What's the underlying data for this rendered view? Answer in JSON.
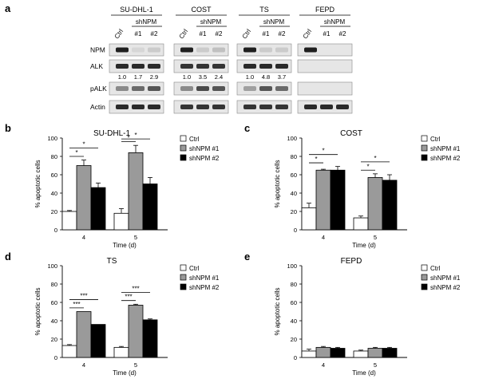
{
  "panel_a": {
    "letter": "a",
    "groups": [
      {
        "title": "SU-DHL-1",
        "ctrl": "Ctrl",
        "sh": "shNPM",
        "sh1": "#1",
        "sh2": "#2",
        "ratios": [
          "1.0",
          "1.7",
          "2.9"
        ]
      },
      {
        "title": "COST",
        "ctrl": "Ctrl",
        "sh": "shNPM",
        "sh1": "#1",
        "sh2": "#2",
        "ratios": [
          "1.0",
          "3.5",
          "2.4"
        ]
      },
      {
        "title": "TS",
        "ctrl": "Ctrl",
        "sh": "shNPM",
        "sh1": "#1",
        "sh2": "#2",
        "ratios": [
          "1.0",
          "4.8",
          "3.7"
        ]
      },
      {
        "title": "FEPD",
        "ctrl": "Ctrl",
        "sh": "shNPM",
        "sh1": "#1",
        "sh2": "#2",
        "ratios": []
      }
    ],
    "row_labels": [
      "NPM",
      "ALK",
      "pALK",
      "Actin"
    ]
  },
  "chart_data": [
    {
      "panel": "b",
      "type": "bar",
      "title": "SU-DHL-1",
      "xlabel": "Time (d)",
      "ylabel": "% apoptotic cells",
      "ylim": [
        0,
        100
      ],
      "yticks": [
        0,
        20,
        40,
        60,
        80,
        100
      ],
      "categories": [
        "4",
        "5"
      ],
      "series": [
        {
          "name": "Ctrl",
          "color": "#ffffff",
          "values": [
            20,
            18
          ],
          "errors": [
            1,
            5
          ]
        },
        {
          "name": "shNPM #1",
          "color": "#9a9a9a",
          "values": [
            70,
            84
          ],
          "errors": [
            6,
            8
          ]
        },
        {
          "name": "shNPM #2",
          "color": "#000000",
          "values": [
            46,
            50
          ],
          "errors": [
            5,
            7
          ]
        }
      ],
      "significance": [
        {
          "category": 0,
          "from": 0,
          "to": 1,
          "label": "*"
        },
        {
          "category": 0,
          "from": 0,
          "to": 2,
          "label": "*"
        },
        {
          "category": 1,
          "from": 0,
          "to": 1,
          "label": "*"
        },
        {
          "category": 1,
          "from": 0,
          "to": 2,
          "label": "*"
        }
      ],
      "legend": "right"
    },
    {
      "panel": "c",
      "type": "bar",
      "title": "COST",
      "xlabel": "Time (d)",
      "ylabel": "% apoptotic cells",
      "ylim": [
        0,
        100
      ],
      "yticks": [
        0,
        20,
        40,
        60,
        80,
        100
      ],
      "categories": [
        "4",
        "5"
      ],
      "series": [
        {
          "name": "Ctrl",
          "color": "#ffffff",
          "values": [
            24,
            13
          ],
          "errors": [
            5,
            2
          ]
        },
        {
          "name": "shNPM #1",
          "color": "#9a9a9a",
          "values": [
            65,
            57
          ],
          "errors": [
            1,
            4
          ]
        },
        {
          "name": "shNPM #2",
          "color": "#000000",
          "values": [
            65,
            54
          ],
          "errors": [
            4,
            6
          ]
        }
      ],
      "significance": [
        {
          "category": 0,
          "from": 0,
          "to": 1,
          "label": "*"
        },
        {
          "category": 0,
          "from": 0,
          "to": 2,
          "label": "*"
        },
        {
          "category": 1,
          "from": 0,
          "to": 1,
          "label": "*"
        },
        {
          "category": 1,
          "from": 0,
          "to": 2,
          "label": "*"
        }
      ],
      "legend": "right"
    },
    {
      "panel": "d",
      "type": "bar",
      "title": "TS",
      "xlabel": "Time (d)",
      "ylabel": "% apoptotic cells",
      "ylim": [
        0,
        100
      ],
      "yticks": [
        0,
        20,
        40,
        60,
        80,
        100
      ],
      "categories": [
        "4",
        "5"
      ],
      "series": [
        {
          "name": "Ctrl",
          "color": "#ffffff",
          "values": [
            13,
            11
          ],
          "errors": [
            1,
            1
          ]
        },
        {
          "name": "shNPM #1",
          "color": "#9a9a9a",
          "values": [
            50,
            57
          ],
          "errors": [
            0,
            1
          ]
        },
        {
          "name": "shNPM #2",
          "color": "#000000",
          "values": [
            36,
            41
          ],
          "errors": [
            0,
            1
          ]
        }
      ],
      "significance": [
        {
          "category": 0,
          "from": 0,
          "to": 1,
          "label": "***"
        },
        {
          "category": 0,
          "from": 0,
          "to": 2,
          "label": "***"
        },
        {
          "category": 1,
          "from": 0,
          "to": 1,
          "label": "***"
        },
        {
          "category": 1,
          "from": 0,
          "to": 2,
          "label": "***"
        }
      ],
      "legend": "right"
    },
    {
      "panel": "e",
      "type": "bar",
      "title": "FEPD",
      "xlabel": "Time (d)",
      "ylabel": "% apoptotic cells",
      "ylim": [
        0,
        100
      ],
      "yticks": [
        0,
        20,
        40,
        60,
        80,
        100
      ],
      "categories": [
        "4",
        "5"
      ],
      "series": [
        {
          "name": "Ctrl",
          "color": "#ffffff",
          "values": [
            7,
            7
          ],
          "errors": [
            2,
            1
          ]
        },
        {
          "name": "shNPM #1",
          "color": "#9a9a9a",
          "values": [
            11,
            10
          ],
          "errors": [
            1,
            1
          ]
        },
        {
          "name": "shNPM #2",
          "color": "#000000",
          "values": [
            10,
            10
          ],
          "errors": [
            1,
            1
          ]
        }
      ],
      "significance": [],
      "legend": "right"
    }
  ]
}
